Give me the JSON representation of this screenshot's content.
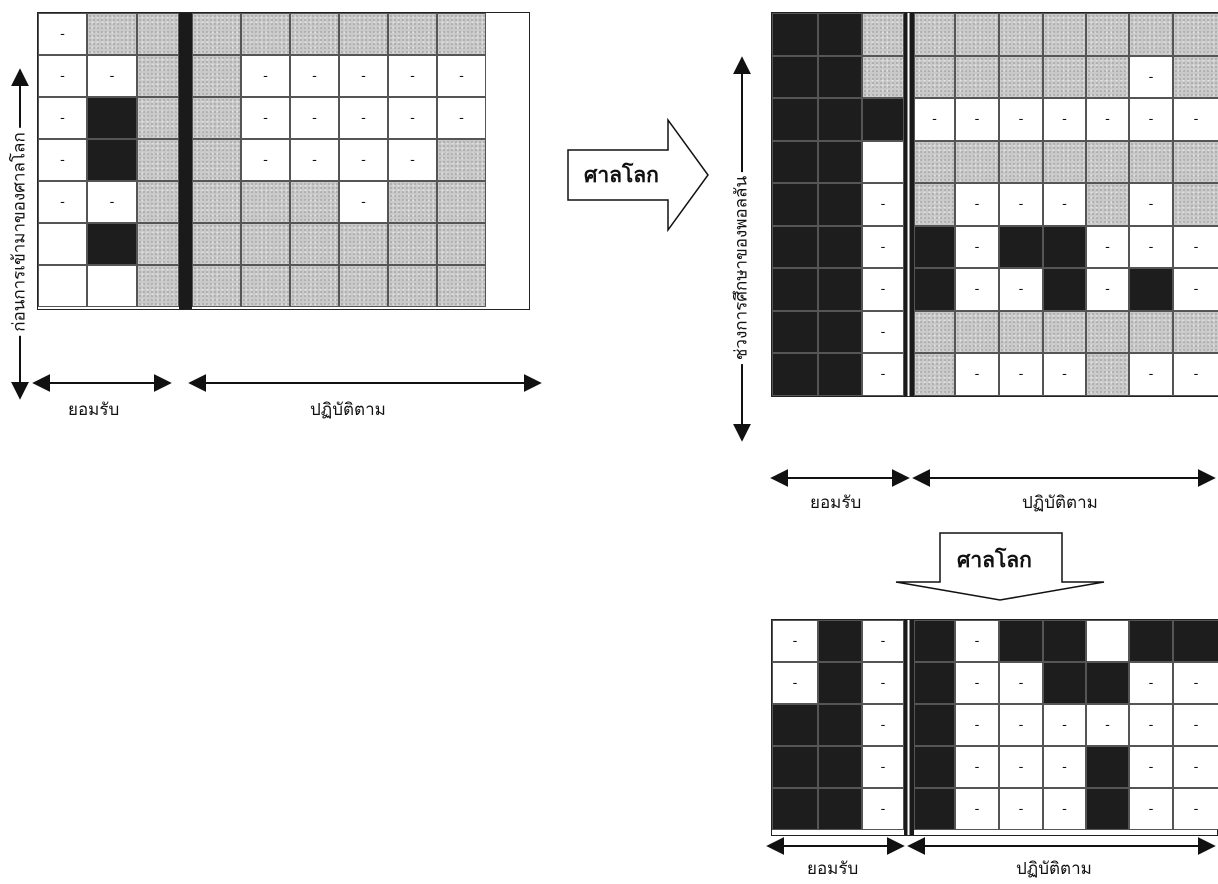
{
  "labels": {
    "accept": "ยอมรับ",
    "comply": "ปฏิบัติตาม",
    "world_court": "ศาลโลก",
    "before_court": "ก่อนการเข้ามาของศาลโลก",
    "during_study": "ช่วงการศึกษาของพอลลัน"
  },
  "colors": {
    "dark": "#1d1d1d",
    "gray": "#c9c9c9",
    "white": "#ffffff"
  },
  "grids": [
    {
      "id": "before",
      "rows": [
        [
          "w-",
          "g",
          "g",
          "g",
          "g",
          "g",
          "g",
          "g",
          "g"
        ],
        [
          "w-",
          "w-",
          "g",
          "g",
          "w-",
          "w-",
          "w-",
          "w-",
          "w-"
        ],
        [
          "w-",
          "d",
          "g",
          "g",
          "w-",
          "w-",
          "w-",
          "w-",
          "w-"
        ],
        [
          "w-",
          "d",
          "g",
          "g",
          "w-",
          "w-",
          "w-",
          "w-",
          "g"
        ],
        [
          "w-",
          "w-",
          "g",
          "g",
          "g",
          "g",
          "w-",
          "g",
          "g"
        ],
        [
          "w",
          "d",
          "g",
          "g",
          "g",
          "g",
          "g",
          "g",
          "g"
        ],
        [
          "w",
          "w",
          "g",
          "g",
          "g",
          "g",
          "g",
          "g",
          "g"
        ]
      ]
    },
    {
      "id": "during",
      "rows": [
        [
          "d",
          "d",
          "g",
          "g",
          "g",
          "g",
          "g",
          "g",
          "g",
          "g"
        ],
        [
          "d",
          "d",
          "g",
          "g",
          "g",
          "g",
          "g",
          "g",
          "w-",
          "g"
        ],
        [
          "d",
          "d",
          "d",
          "w-",
          "w-",
          "w-",
          "w-",
          "w-",
          "w-",
          "w-"
        ],
        [
          "d",
          "d",
          "w",
          "g",
          "g",
          "g",
          "g",
          "g",
          "g",
          "g"
        ],
        [
          "d",
          "d",
          "w-",
          "g",
          "w-",
          "w-",
          "w-",
          "g",
          "w-",
          "g"
        ],
        [
          "d",
          "d",
          "w-",
          "d",
          "w-",
          "d",
          "d",
          "w-",
          "w-",
          "w-"
        ],
        [
          "d",
          "d",
          "w-",
          "d",
          "w-",
          "w-",
          "d",
          "w-",
          "d",
          "w-"
        ],
        [
          "d",
          "d",
          "w-",
          "g",
          "g",
          "g",
          "g",
          "g",
          "g",
          "g"
        ],
        [
          "d",
          "d",
          "w-",
          "g",
          "w-",
          "w-",
          "w-",
          "g",
          "w-",
          "w-"
        ]
      ]
    },
    {
      "id": "after",
      "rows": [
        [
          "w-",
          "d",
          "w-",
          "d",
          "w-",
          "d",
          "d",
          "w",
          "d",
          "d"
        ],
        [
          "w-",
          "d",
          "w-",
          "d",
          "w-",
          "w-",
          "d",
          "d",
          "w-",
          "w-"
        ],
        [
          "d",
          "d",
          "w-",
          "d",
          "w-",
          "w-",
          "w-",
          "w-",
          "w-",
          "w-"
        ],
        [
          "d",
          "d",
          "w-",
          "d",
          "w-",
          "w-",
          "w-",
          "d",
          "w-",
          "w-"
        ],
        [
          "d",
          "d",
          "w-",
          "d",
          "w-",
          "w-",
          "w-",
          "d",
          "w-",
          "w-"
        ]
      ]
    }
  ]
}
